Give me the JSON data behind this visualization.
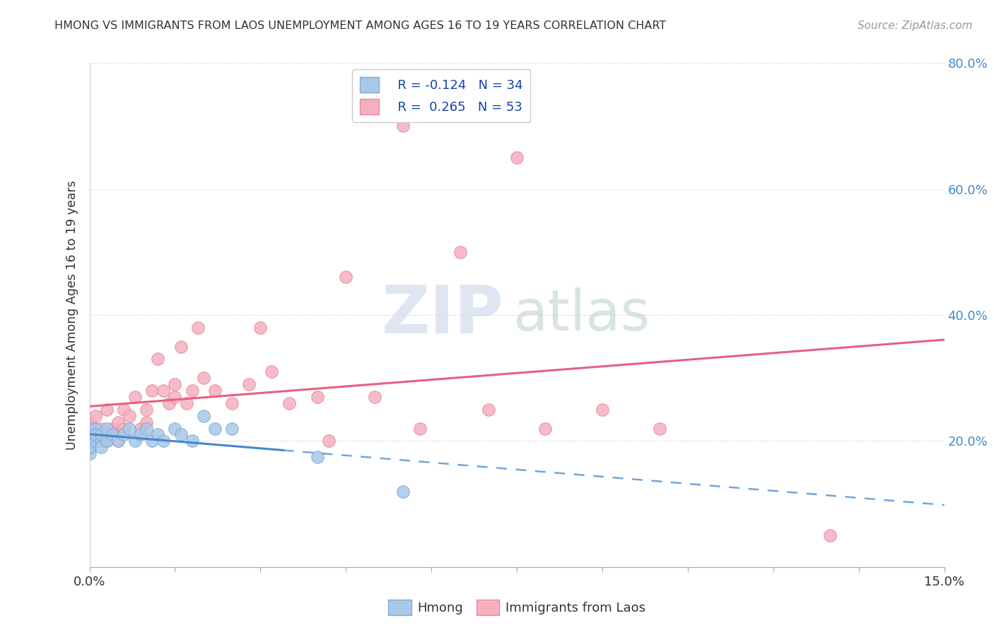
{
  "title": "HMONG VS IMMIGRANTS FROM LAOS UNEMPLOYMENT AMONG AGES 16 TO 19 YEARS CORRELATION CHART",
  "source": "Source: ZipAtlas.com",
  "ylabel_label": "Unemployment Among Ages 16 to 19 years",
  "xlim": [
    0.0,
    0.15
  ],
  "ylim": [
    0.0,
    0.8
  ],
  "yticks": [
    0.0,
    0.2,
    0.4,
    0.6,
    0.8
  ],
  "ytick_labels": [
    "",
    "20.0%",
    "40.0%",
    "60.0%",
    "80.0%"
  ],
  "watermark_zip": "ZIP",
  "watermark_atlas": "atlas",
  "hmong_color": "#a8c8e8",
  "hmong_edge": "#80aad0",
  "hmong_line_color": "#4488cc",
  "laos_color": "#f5b0c0",
  "laos_edge": "#e888a0",
  "laos_line_color": "#e86080",
  "hmong_R": -0.124,
  "hmong_N": 34,
  "laos_R": 0.265,
  "laos_N": 53,
  "hmong_x": [
    0.0,
    0.0,
    0.0,
    0.0,
    0.0,
    0.0,
    0.0,
    0.0,
    0.001,
    0.001,
    0.001,
    0.002,
    0.002,
    0.002,
    0.003,
    0.003,
    0.004,
    0.005,
    0.006,
    0.007,
    0.008,
    0.009,
    0.01,
    0.011,
    0.012,
    0.013,
    0.015,
    0.016,
    0.018,
    0.02,
    0.022,
    0.025,
    0.04,
    0.055
  ],
  "hmong_y": [
    0.2,
    0.21,
    0.19,
    0.22,
    0.18,
    0.2,
    0.21,
    0.19,
    0.2,
    0.22,
    0.21,
    0.2,
    0.19,
    0.21,
    0.22,
    0.2,
    0.21,
    0.2,
    0.21,
    0.22,
    0.2,
    0.21,
    0.22,
    0.2,
    0.21,
    0.2,
    0.22,
    0.21,
    0.2,
    0.24,
    0.22,
    0.22,
    0.175,
    0.12
  ],
  "laos_x": [
    0.0,
    0.0,
    0.0,
    0.0,
    0.0,
    0.001,
    0.001,
    0.001,
    0.002,
    0.002,
    0.003,
    0.003,
    0.004,
    0.004,
    0.005,
    0.005,
    0.006,
    0.006,
    0.007,
    0.008,
    0.009,
    0.01,
    0.01,
    0.011,
    0.012,
    0.013,
    0.014,
    0.015,
    0.015,
    0.016,
    0.017,
    0.018,
    0.019,
    0.02,
    0.022,
    0.025,
    0.028,
    0.03,
    0.032,
    0.035,
    0.04,
    0.042,
    0.045,
    0.05,
    0.055,
    0.058,
    0.065,
    0.07,
    0.075,
    0.08,
    0.09,
    0.1,
    0.13
  ],
  "laos_y": [
    0.2,
    0.22,
    0.21,
    0.19,
    0.23,
    0.22,
    0.2,
    0.24,
    0.21,
    0.22,
    0.2,
    0.25,
    0.22,
    0.21,
    0.23,
    0.2,
    0.25,
    0.22,
    0.24,
    0.27,
    0.22,
    0.25,
    0.23,
    0.28,
    0.33,
    0.28,
    0.26,
    0.29,
    0.27,
    0.35,
    0.26,
    0.28,
    0.38,
    0.3,
    0.28,
    0.26,
    0.29,
    0.38,
    0.31,
    0.26,
    0.27,
    0.2,
    0.46,
    0.27,
    0.7,
    0.22,
    0.5,
    0.25,
    0.65,
    0.22,
    0.25,
    0.22,
    0.05
  ],
  "legend_R_color": "#1144aa",
  "legend_N_color": "#1144aa"
}
